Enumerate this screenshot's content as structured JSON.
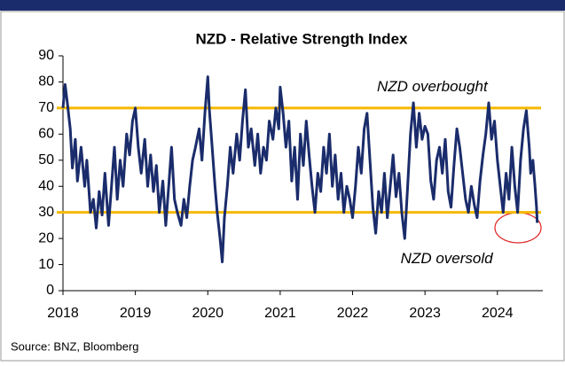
{
  "chart_data": {
    "type": "line",
    "title": "NZD - Relative Strength Index",
    "source": "Source: BNZ, Bloomberg",
    "annotations": [
      {
        "text": "NZD overbought",
        "x": 2023.1,
        "y": 78
      },
      {
        "text": "NZD oversold",
        "x": 2023.3,
        "y": 12
      }
    ],
    "reference_lines": [
      70,
      30
    ],
    "reference_color": "#f5b800",
    "xlim": [
      2018,
      2024.75
    ],
    "xticks": [
      2018,
      2019,
      2020,
      2021,
      2022,
      2023,
      2024
    ],
    "ylim": [
      0,
      90
    ],
    "yticks": [
      0,
      10,
      20,
      30,
      40,
      50,
      60,
      70,
      80,
      90
    ],
    "series": [
      {
        "name": "RSI",
        "color": "#1a2c6b",
        "x": [
          2018.0,
          2018.03,
          2018.06,
          2018.1,
          2018.13,
          2018.17,
          2018.2,
          2018.25,
          2018.3,
          2018.33,
          2018.38,
          2018.42,
          2018.46,
          2018.5,
          2018.54,
          2018.58,
          2018.63,
          2018.67,
          2018.71,
          2018.75,
          2018.79,
          2018.83,
          2018.88,
          2018.92,
          2018.96,
          2019.0,
          2019.04,
          2019.08,
          2019.13,
          2019.17,
          2019.21,
          2019.25,
          2019.29,
          2019.33,
          2019.38,
          2019.42,
          2019.46,
          2019.5,
          2019.54,
          2019.58,
          2019.63,
          2019.67,
          2019.71,
          2019.75,
          2019.79,
          2019.83,
          2019.88,
          2019.92,
          2019.96,
          2020.0,
          2020.02,
          2020.06,
          2020.1,
          2020.13,
          2020.17,
          2020.2,
          2020.23,
          2020.27,
          2020.31,
          2020.35,
          2020.4,
          2020.44,
          2020.48,
          2020.52,
          2020.56,
          2020.6,
          2020.65,
          2020.69,
          2020.73,
          2020.77,
          2020.81,
          2020.85,
          2020.9,
          2020.94,
          2020.98,
          2021.0,
          2021.04,
          2021.08,
          2021.12,
          2021.16,
          2021.2,
          2021.24,
          2021.28,
          2021.32,
          2021.36,
          2021.4,
          2021.44,
          2021.48,
          2021.52,
          2021.56,
          2021.6,
          2021.64,
          2021.68,
          2021.72,
          2021.76,
          2021.8,
          2021.84,
          2021.88,
          2021.92,
          2021.96,
          2022.0,
          2022.04,
          2022.08,
          2022.12,
          2022.16,
          2022.2,
          2022.24,
          2022.28,
          2022.32,
          2022.36,
          2022.4,
          2022.44,
          2022.48,
          2022.52,
          2022.56,
          2022.6,
          2022.64,
          2022.68,
          2022.72,
          2022.76,
          2022.8,
          2022.84,
          2022.88,
          2022.92,
          2022.96,
          2023.0,
          2023.04,
          2023.08,
          2023.12,
          2023.16,
          2023.2,
          2023.24,
          2023.28,
          2023.32,
          2023.36,
          2023.4,
          2023.44,
          2023.48,
          2023.52,
          2023.56,
          2023.6,
          2023.64,
          2023.68,
          2023.72,
          2023.76,
          2023.8,
          2023.84,
          2023.88,
          2023.92,
          2023.96,
          2024.0,
          2024.04,
          2024.08,
          2024.12,
          2024.16,
          2024.2,
          2024.24,
          2024.28,
          2024.32,
          2024.36,
          2024.4,
          2024.44,
          2024.46,
          2024.49,
          2024.52,
          2024.54,
          2024.55
        ],
        "values": [
          70,
          79,
          72,
          62,
          47,
          58,
          42,
          55,
          40,
          50,
          30,
          35,
          24,
          38,
          29,
          45,
          25,
          40,
          55,
          35,
          50,
          40,
          60,
          52,
          65,
          70,
          55,
          45,
          58,
          40,
          52,
          38,
          48,
          30,
          42,
          25,
          40,
          55,
          35,
          30,
          25,
          35,
          28,
          40,
          50,
          55,
          62,
          50,
          68,
          82,
          70,
          55,
          40,
          30,
          20,
          11,
          28,
          40,
          55,
          45,
          60,
          50,
          65,
          77,
          55,
          62,
          48,
          60,
          45,
          55,
          50,
          65,
          58,
          70,
          62,
          78,
          68,
          55,
          65,
          42,
          55,
          35,
          60,
          48,
          65,
          52,
          40,
          30,
          45,
          38,
          55,
          45,
          60,
          40,
          52,
          35,
          45,
          30,
          40,
          35,
          28,
          40,
          55,
          45,
          62,
          68,
          50,
          32,
          22,
          38,
          30,
          45,
          28,
          40,
          52,
          36,
          45,
          30,
          20,
          40,
          60,
          72,
          55,
          68,
          58,
          63,
          60,
          42,
          35,
          50,
          55,
          45,
          58,
          38,
          32,
          48,
          62,
          55,
          45,
          35,
          30,
          40,
          33,
          28,
          42,
          52,
          60,
          72,
          58,
          65,
          50,
          40,
          30,
          45,
          35,
          55,
          40,
          30,
          50,
          62,
          69,
          55,
          45,
          50,
          40,
          32,
          26
        ]
      }
    ]
  }
}
